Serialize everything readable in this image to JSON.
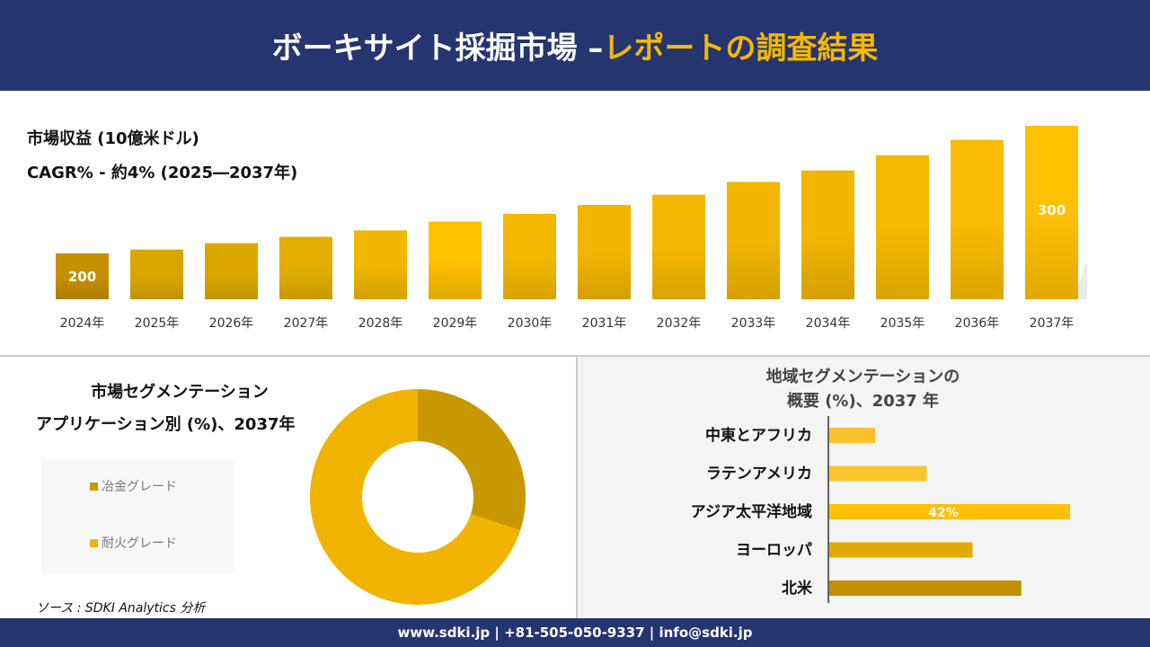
{
  "header": {
    "title_white": "ボーキサイト採掘市場 –",
    "title_yellow": "レポートの調査結果"
  },
  "chart_data": [
    {
      "type": "bar",
      "title": "市場収益 (10億米ドル)",
      "subtitle": "CAGR% - 約4% (2025―2037年)",
      "categories": [
        "2024年",
        "2025年",
        "2026年",
        "2027年",
        "2028年",
        "2029年",
        "2030年",
        "2031年",
        "2032年",
        "2033年",
        "2034年",
        "2035年",
        "2036年",
        "2037年"
      ],
      "values": [
        200,
        203,
        208,
        213,
        218,
        225,
        231,
        238,
        246,
        256,
        265,
        277,
        289,
        300
      ],
      "data_labels": {
        "0": "200",
        "13": "300"
      },
      "colors": [
        "#C49000",
        "#D9A600",
        "#DCA800",
        "#E3AE00",
        "#F0B600",
        "#FFC000",
        "#F5B800",
        "#F2B500",
        "#F5B800",
        "#F2B500",
        "#F2B500",
        "#F7BA00",
        "#FABC00",
        "#FFC000"
      ]
    },
    {
      "type": "pie",
      "donut": true,
      "title_line1": "市場セグメンテーション",
      "title_line2": "アプリケーション別 (%)、2037年",
      "labels": [
        "冶金グレード",
        "耐火グレード"
      ],
      "values": [
        30,
        70
      ],
      "colors": [
        "#C79800",
        "#F0B400"
      ],
      "legend": "left"
    },
    {
      "type": "bar",
      "orientation": "horizontal",
      "title_line1": "地域セグメンテーションの",
      "title_line2": "概要 (%)、2037 年",
      "categories": [
        "中東とアフリカ",
        "ラテンアメリカ",
        "アジア太平洋地域",
        "ヨーロッパ",
        "北米"
      ],
      "values": [
        8,
        17,
        42,
        25,
        33.5
      ],
      "data_labels": {
        "2": "42%"
      },
      "colors": [
        "#FBC02D",
        "#FBC52B",
        "#FFC000",
        "#E0AA00",
        "#C09000"
      ]
    }
  ],
  "source": "ソース : SDKI Analytics 分析",
  "footer": "www.sdki.jp | +81-505-050-9337 | info@sdki.jp"
}
